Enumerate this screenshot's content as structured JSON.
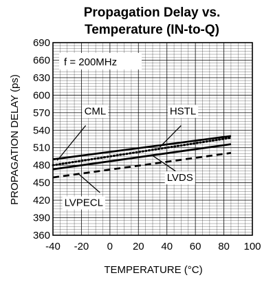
{
  "chart_data": {
    "type": "line",
    "title_lines": [
      "Propagation Delay vs.",
      "Temperature (IN-to-Q)"
    ],
    "xlabel": "TEMPERATURE (°C)",
    "ylabel": "PROPAGATION DELAY (ps)",
    "xlim": [
      -40,
      100
    ],
    "ylim": [
      360,
      690
    ],
    "x_ticks": [
      -40,
      -20,
      0,
      20,
      40,
      60,
      80,
      100
    ],
    "y_ticks": [
      360,
      390,
      420,
      450,
      480,
      510,
      540,
      570,
      600,
      630,
      660,
      690
    ],
    "grid": true,
    "annotation": "f = 200MHz",
    "series": [
      {
        "name": "CML",
        "style": "solid",
        "x": [
          -40,
          85
        ],
        "values": [
          490,
          530
        ]
      },
      {
        "name": "HSTL",
        "style": "dotted",
        "x": [
          -40,
          85
        ],
        "values": [
          480,
          527
        ]
      },
      {
        "name": "LVDS",
        "style": "solid",
        "x": [
          -40,
          85
        ],
        "values": [
          473,
          516
        ]
      },
      {
        "name": "LVPECL",
        "style": "dashed",
        "x": [
          -40,
          85
        ],
        "values": [
          459,
          501
        ]
      }
    ],
    "labels": [
      {
        "series": "CML",
        "text": "CML",
        "at": [
          -18,
          567
        ],
        "anchor": "start"
      },
      {
        "series": "HSTL",
        "text": "HSTL",
        "at": [
          42,
          567
        ],
        "anchor": "start"
      },
      {
        "series": "LVDS",
        "text": "LVDS",
        "at": [
          40,
          453
        ],
        "anchor": "start"
      },
      {
        "series": "LVPECL",
        "text": "LVPECL",
        "at": [
          -32,
          410
        ],
        "anchor": "start"
      }
    ],
    "leaders": [
      {
        "series": "CML",
        "from": [
          -17,
          548
        ],
        "to": [
          -37,
          488
        ]
      },
      {
        "series": "HSTL",
        "from": [
          50,
          548
        ],
        "to": [
          35,
          511
        ]
      },
      {
        "series": "LVDS",
        "from": [
          46,
          470
        ],
        "to": [
          29,
          498
        ]
      },
      {
        "series": "LVPECL",
        "from": [
          -7,
          433
        ],
        "to": [
          -22,
          465
        ]
      }
    ]
  }
}
